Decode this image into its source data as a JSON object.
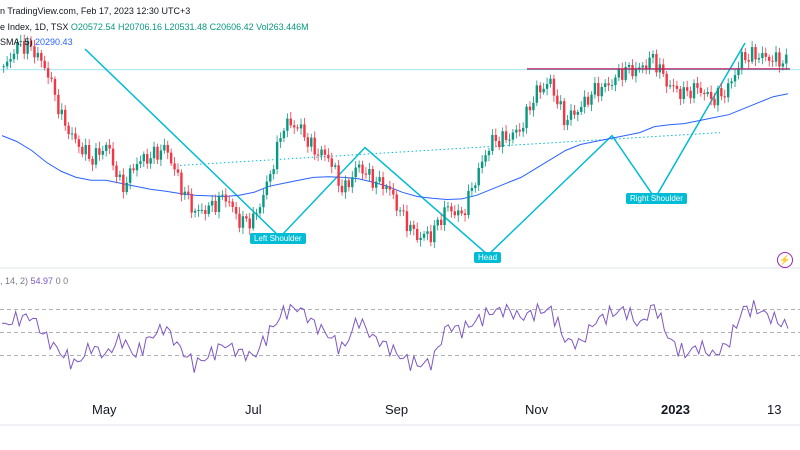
{
  "header": {
    "line1_prefix": "n TradingView.com, Feb 17, 2023 12:30 UTC+3",
    "line2_title": "e Index, 1D, TSX",
    "o": "O20572.54",
    "h": "H20706.16",
    "l": "L20531.48",
    "c": "C20606.42",
    "vol": "Vol263.446M",
    "sma_label": "SMA, 5)",
    "sma_value": "20290.43",
    "rsi_label": ", 14, 2)",
    "rsi_value": "54.97",
    "rsi_extra": "0 0"
  },
  "x_axis_labels": [
    "May",
    "Jul",
    "Sep",
    "Nov",
    "2023",
    "13"
  ],
  "pattern_labels": {
    "left_shoulder": "Left Shoulder",
    "head": "Head",
    "right_shoulder": "Right Shoulder"
  },
  "colors": {
    "up": "#089981",
    "down": "#f23645",
    "sma": "#2962ff",
    "pattern": "#00bcd4",
    "resistance": "#c2185b",
    "rsi": "#7e57c2"
  },
  "chart_data": {
    "type": "candlestick",
    "price_series": [
      20500,
      20950,
      20850,
      20450,
      19650,
      19250,
      19000,
      19250,
      18500,
      18950,
      19050,
      19200,
      18550,
      18100,
      18200,
      18400,
      17950,
      18000,
      18700,
      19600,
      19550,
      19150,
      19050,
      18450,
      18900,
      18650,
      18550,
      18050,
      17700,
      17750,
      18200,
      18050,
      18700,
      19300,
      19350,
      19500,
      20100,
      20300,
      19650,
      19850,
      20150,
      20250,
      20500,
      20500,
      20700,
      20250,
      20100,
      20200,
      20000,
      20150,
      20700,
      20750,
      20680,
      20630
    ],
    "sma_series": [
      19400,
      19300,
      19150,
      18950,
      18800,
      18700,
      18650,
      18650,
      18600,
      18550,
      18500,
      18470,
      18430,
      18400,
      18390,
      18380,
      18400,
      18450,
      18550,
      18600,
      18650,
      18700,
      18710,
      18700,
      18680,
      18620,
      18550,
      18450,
      18380,
      18350,
      18330,
      18340,
      18400,
      18500,
      18600,
      18700,
      18850,
      19000,
      19150,
      19250,
      19300,
      19350,
      19400,
      19450,
      19550,
      19580,
      19600,
      19650,
      19700,
      19750,
      19850,
      19950,
      20050,
      20100
    ],
    "rsi_series": [
      55,
      62,
      64,
      45,
      32,
      22,
      38,
      30,
      45,
      30,
      46,
      55,
      36,
      22,
      30,
      40,
      33,
      29,
      50,
      68,
      72,
      58,
      48,
      35,
      62,
      46,
      38,
      28,
      22,
      24,
      56,
      52,
      60,
      68,
      70,
      63,
      68,
      70,
      43,
      40,
      60,
      66,
      70,
      56,
      74,
      44,
      31,
      38,
      30,
      41,
      71,
      70,
      62,
      55
    ],
    "neckline_level": 20500,
    "resistance_level": 20500,
    "pattern": "Head and Shoulders (inverse)",
    "x_labels": [
      "May",
      "Jul",
      "Sep",
      "Nov",
      "2023",
      "13"
    ]
  }
}
